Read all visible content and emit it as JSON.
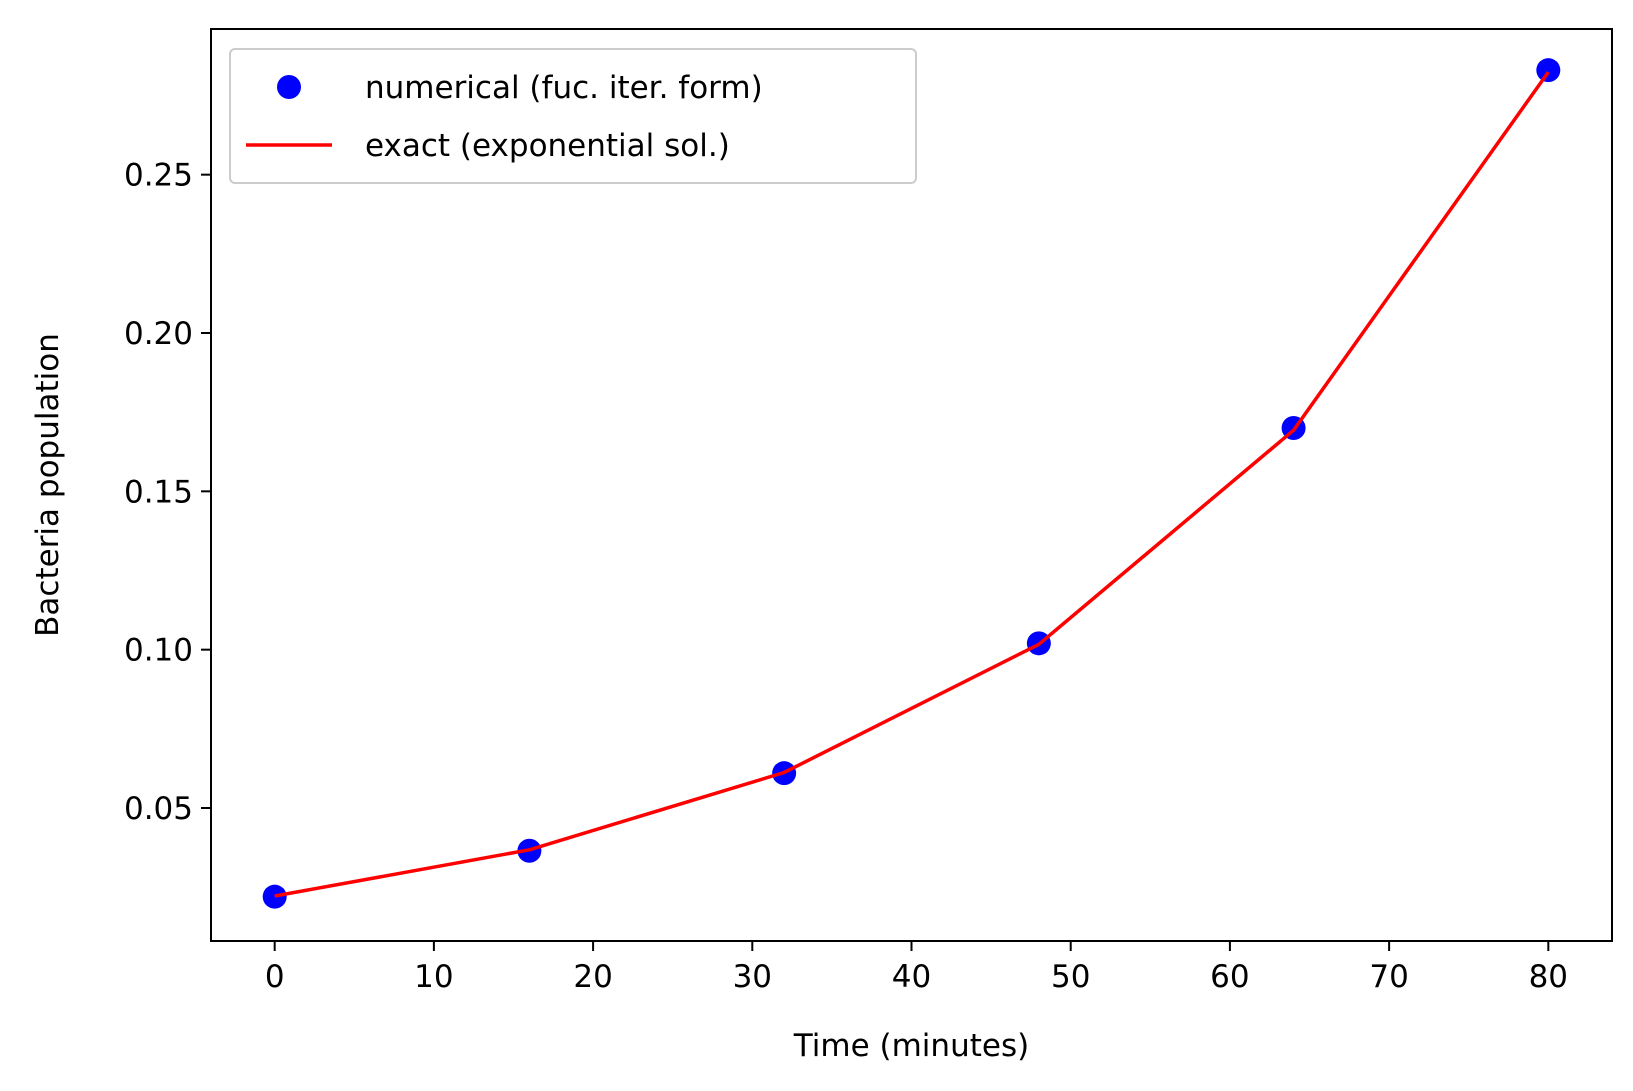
{
  "chart_data": {
    "type": "line",
    "title": "",
    "xlabel": "Time (minutes)",
    "ylabel": "Bacteria population",
    "xlim": [
      -4,
      84
    ],
    "ylim": [
      0.008,
      0.296
    ],
    "xticks": [
      0,
      10,
      20,
      30,
      40,
      50,
      60,
      70,
      80
    ],
    "xtick_labels": [
      "0",
      "10",
      "20",
      "30",
      "40",
      "50",
      "60",
      "70",
      "80"
    ],
    "yticks": [
      0.05,
      0.1,
      0.15,
      0.2,
      0.25
    ],
    "ytick_labels": [
      "0.05",
      "0.10",
      "0.15",
      "0.20",
      "0.25"
    ],
    "grid": false,
    "legend_position": "top-left",
    "series": [
      {
        "name": "numerical (fuc. iter. form)",
        "style": "markers",
        "color": "#0000ff",
        "x": [
          0,
          16,
          32,
          48,
          64,
          80
        ],
        "y": [
          0.022,
          0.0365,
          0.061,
          0.102,
          0.17,
          0.283
        ]
      },
      {
        "name": "exact (exponential sol.)",
        "style": "line",
        "color": "#ff0000",
        "x": [
          0,
          16,
          32,
          48,
          64,
          80
        ],
        "y": [
          0.0222,
          0.0368,
          0.0612,
          0.1017,
          0.1693,
          0.2824
        ]
      }
    ]
  }
}
